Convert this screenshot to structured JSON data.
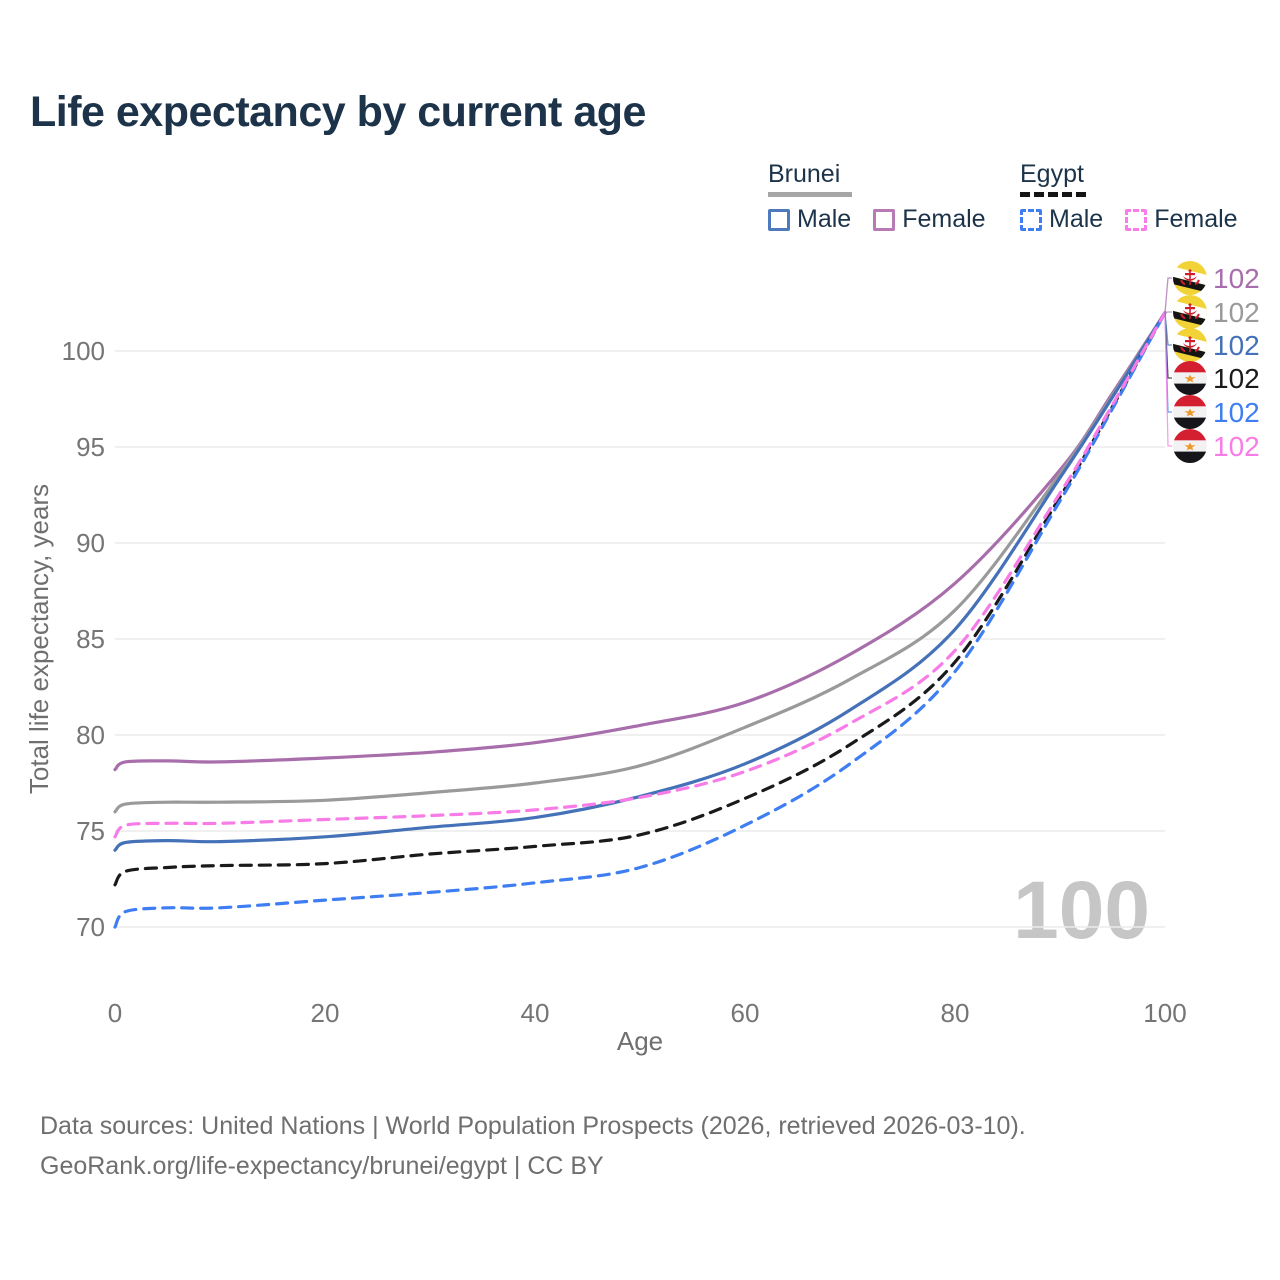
{
  "title": "Life expectancy by current age",
  "legend": {
    "groups": [
      {
        "country": "Brunei",
        "line_style": "solid",
        "items": [
          {
            "label": "Male",
            "color": "#4e79bc"
          },
          {
            "label": "Female",
            "color": "#b77ab5"
          }
        ]
      },
      {
        "country": "Egypt",
        "line_style": "dashed",
        "items": [
          {
            "label": "Male",
            "color": "#3e7ef2"
          },
          {
            "label": "Female",
            "color": "#fb7ce8"
          }
        ]
      }
    ]
  },
  "watermark": "100",
  "footer": {
    "line1": "Data sources: United Nations | World Population Prospects (2026, retrieved 2026-03-10).",
    "line2": "GeoRank.org/life-expectancy/brunei/egypt | CC BY"
  },
  "colors": {
    "title_text": "#1c334a",
    "axis_text": "#757575",
    "gridline": "#ececec",
    "watermark": "#c6c6c6",
    "brunei_female": "#a86dab",
    "brunei_both": "#9a9a9a",
    "brunei_male": "#4471b7",
    "egypt_both": "#1a1a1a",
    "egypt_male": "#3e7ef2",
    "egypt_female": "#f87ce8"
  },
  "chart_data": {
    "type": "line",
    "title": "Life expectancy by current age",
    "xlabel": "Age",
    "ylabel": "Total life expectancy, years",
    "xlim": [
      0,
      100
    ],
    "ylim": [
      68.5,
      103
    ],
    "x_ticks": [
      0,
      20,
      40,
      60,
      80,
      100
    ],
    "y_ticks": [
      70,
      75,
      80,
      85,
      90,
      95,
      100
    ],
    "grid": "horizontal-only",
    "legend_position": "top-right",
    "x": [
      0,
      1,
      5,
      10,
      20,
      30,
      40,
      50,
      60,
      70,
      80,
      90,
      95,
      100
    ],
    "series": [
      {
        "name": "Brunei Female",
        "country": "Brunei",
        "sex": "Female",
        "flag": "brunei",
        "color": "#a86dab",
        "dash": "solid",
        "end_label": "102",
        "values": [
          78.2,
          78.6,
          78.65,
          78.6,
          78.8,
          79.1,
          79.6,
          80.5,
          81.7,
          84.2,
          87.9,
          93.8,
          97.8,
          102
        ]
      },
      {
        "name": "Brunei Both sexes",
        "country": "Brunei",
        "sex": "Both sexes",
        "flag": "brunei",
        "color": "#9a9a9a",
        "dash": "solid",
        "end_label": "102",
        "values": [
          76.0,
          76.4,
          76.5,
          76.5,
          76.6,
          77.0,
          77.5,
          78.4,
          80.4,
          82.9,
          86.5,
          93.6,
          97.7,
          102
        ]
      },
      {
        "name": "Brunei Male",
        "country": "Brunei",
        "sex": "Male",
        "flag": "brunei",
        "color": "#4471b7",
        "dash": "solid",
        "end_label": "102",
        "values": [
          74.0,
          74.4,
          74.5,
          74.45,
          74.7,
          75.2,
          75.7,
          76.8,
          78.5,
          81.3,
          85.5,
          93.4,
          97.6,
          102
        ]
      },
      {
        "name": "Egypt Both sexes",
        "country": "Egypt",
        "sex": "Both sexes",
        "flag": "egypt",
        "color": "#1a1a1a",
        "dash": "dashed",
        "end_label": "102",
        "values": [
          72.2,
          72.9,
          73.1,
          73.2,
          73.3,
          73.8,
          74.2,
          74.8,
          76.7,
          79.5,
          83.8,
          92.4,
          97.1,
          102
        ]
      },
      {
        "name": "Egypt Male",
        "country": "Egypt",
        "sex": "Male",
        "flag": "egypt",
        "color": "#3e7ef2",
        "dash": "dashed",
        "end_label": "102",
        "values": [
          70.0,
          70.8,
          71.0,
          71.0,
          71.4,
          71.8,
          72.3,
          73.1,
          75.3,
          78.5,
          83.3,
          92.2,
          97.0,
          102
        ]
      },
      {
        "name": "Egypt Female",
        "country": "Egypt",
        "sex": "Female",
        "flag": "egypt",
        "color": "#f87ce8",
        "dash": "dashed",
        "end_label": "102",
        "values": [
          74.7,
          75.3,
          75.4,
          75.4,
          75.6,
          75.8,
          76.1,
          76.75,
          78.1,
          80.6,
          84.4,
          92.6,
          97.2,
          102
        ]
      }
    ]
  }
}
